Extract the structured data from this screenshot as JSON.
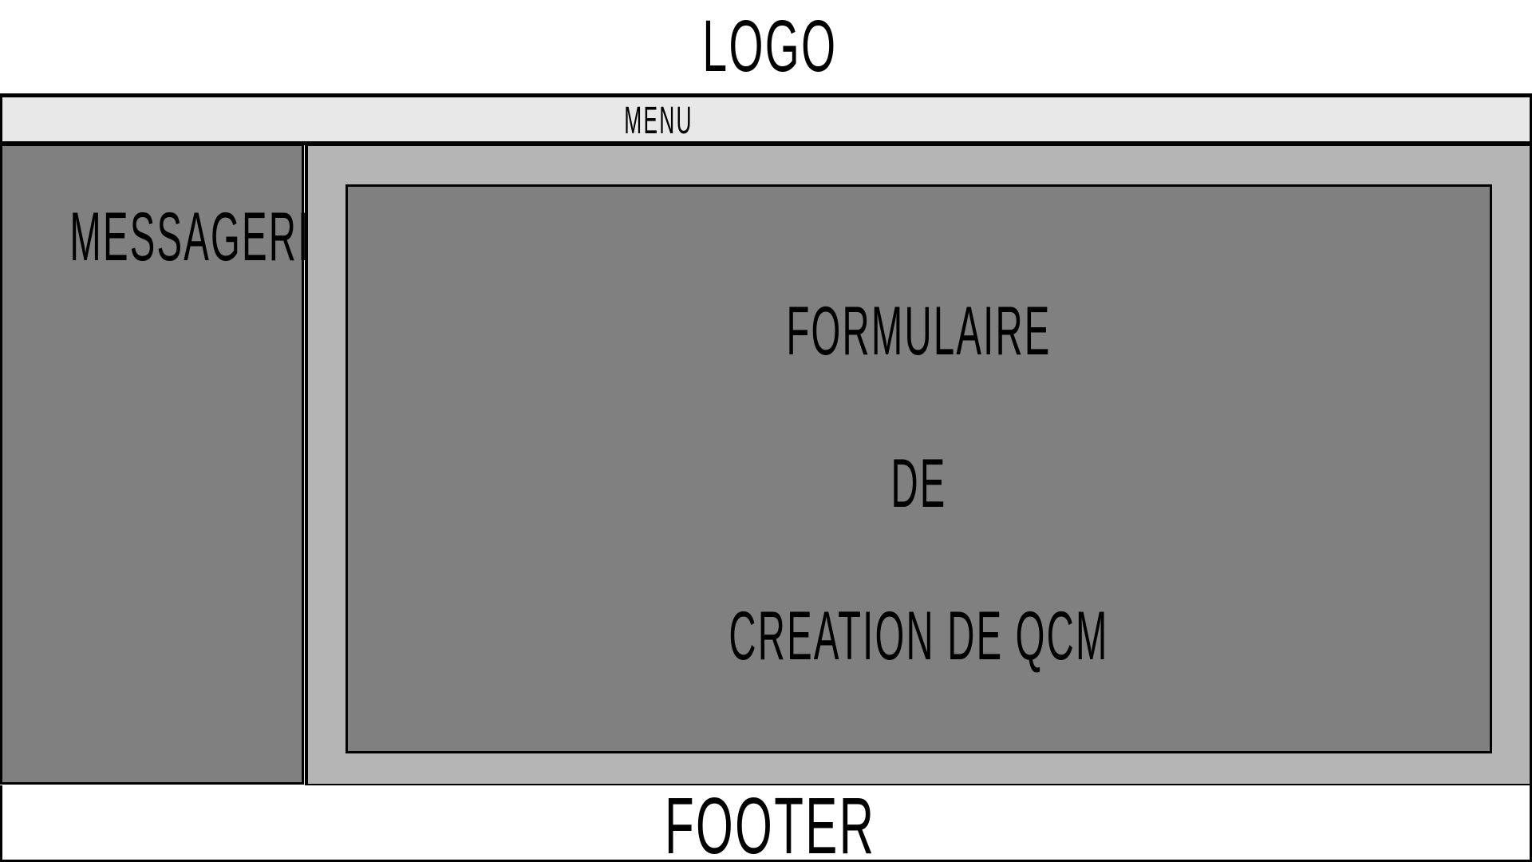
{
  "header": {
    "logo_text": "LOGO"
  },
  "menu": {
    "label": "MENU"
  },
  "sidebar": {
    "title": "MESSAGERIE"
  },
  "main": {
    "form_lines": [
      "FORMULAIRE",
      "DE",
      "CREATION DE QCM"
    ]
  },
  "footer": {
    "label": "FOOTER"
  },
  "colors": {
    "page_background": "#ffffff",
    "menu_background": "#e8e8e8",
    "sidebar_background": "#808080",
    "main_background": "#b5b5b5",
    "form_background": "#808080",
    "border": "#000000"
  }
}
